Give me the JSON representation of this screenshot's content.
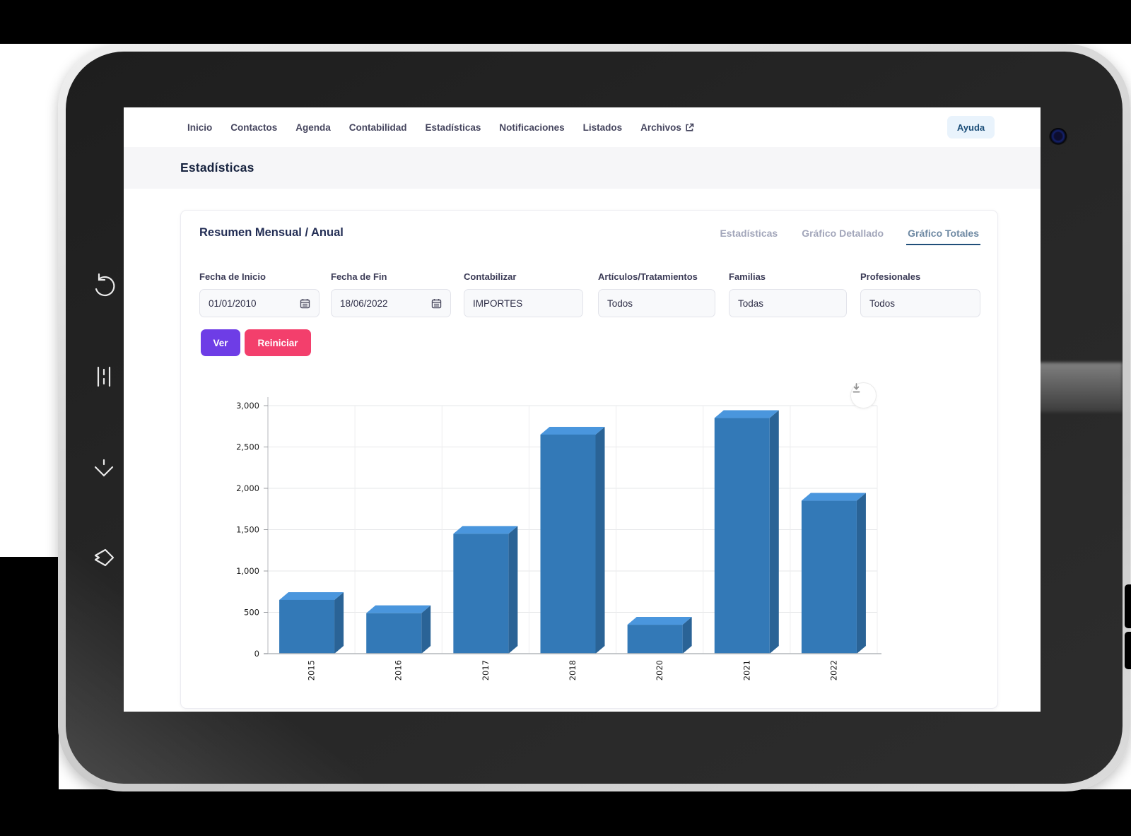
{
  "nav": {
    "items": [
      "Inicio",
      "Contactos",
      "Agenda",
      "Contabilidad",
      "Estadísticas",
      "Notificaciones",
      "Listados",
      "Archivos"
    ],
    "external_link_item": "Archivos",
    "help_label": "Ayuda"
  },
  "page": {
    "title": "Estadísticas"
  },
  "card": {
    "title": "Resumen Mensual / Anual",
    "tabs": [
      {
        "label": "Estadísticas",
        "active": false
      },
      {
        "label": "Gráfico Detallado",
        "active": false
      },
      {
        "label": "Gráfico Totales",
        "active": true
      }
    ],
    "filters": [
      {
        "label": "Fecha de Inicio",
        "value": "01/01/2010",
        "type": "date"
      },
      {
        "label": "Fecha de Fin",
        "value": "18/06/2022",
        "type": "date"
      },
      {
        "label": "Contabilizar",
        "value": "IMPORTES",
        "type": "select"
      },
      {
        "label": "Artículos/Tratamientos",
        "value": "Todos",
        "type": "select"
      },
      {
        "label": "Familias",
        "value": "Todas",
        "type": "select"
      },
      {
        "label": "Profesionales",
        "value": "Todos",
        "type": "select"
      }
    ],
    "buttons": {
      "view": "Ver",
      "reset": "Reiniciar"
    }
  },
  "chart_data": {
    "type": "bar",
    "style": "3d",
    "categories": [
      "2015",
      "2016",
      "2017",
      "2018",
      "2020",
      "2021",
      "2022"
    ],
    "values": [
      650,
      490,
      1450,
      2650,
      350,
      2850,
      1850
    ],
    "title": "",
    "xlabel": "",
    "ylabel": "",
    "ylim": [
      0,
      3000
    ],
    "yticks": [
      0,
      500,
      1000,
      1500,
      2000,
      2500,
      3000
    ],
    "ytick_labels": [
      "0",
      "500",
      "1,000",
      "1,500",
      "2,000",
      "2,500",
      "3,000"
    ],
    "grid": true,
    "legend": false,
    "bar_color_front": "#3379b7",
    "bar_color_top": "#4a96dd",
    "bar_color_side": "#2a6396"
  },
  "colors": {
    "accent_purple": "#6e3de6",
    "accent_pink": "#f33f6c",
    "help_bg": "#e9f3fc",
    "help_text": "#1a4d78",
    "tab_underline": "#1f4e79",
    "strip_bg": "#f6f6f8"
  }
}
